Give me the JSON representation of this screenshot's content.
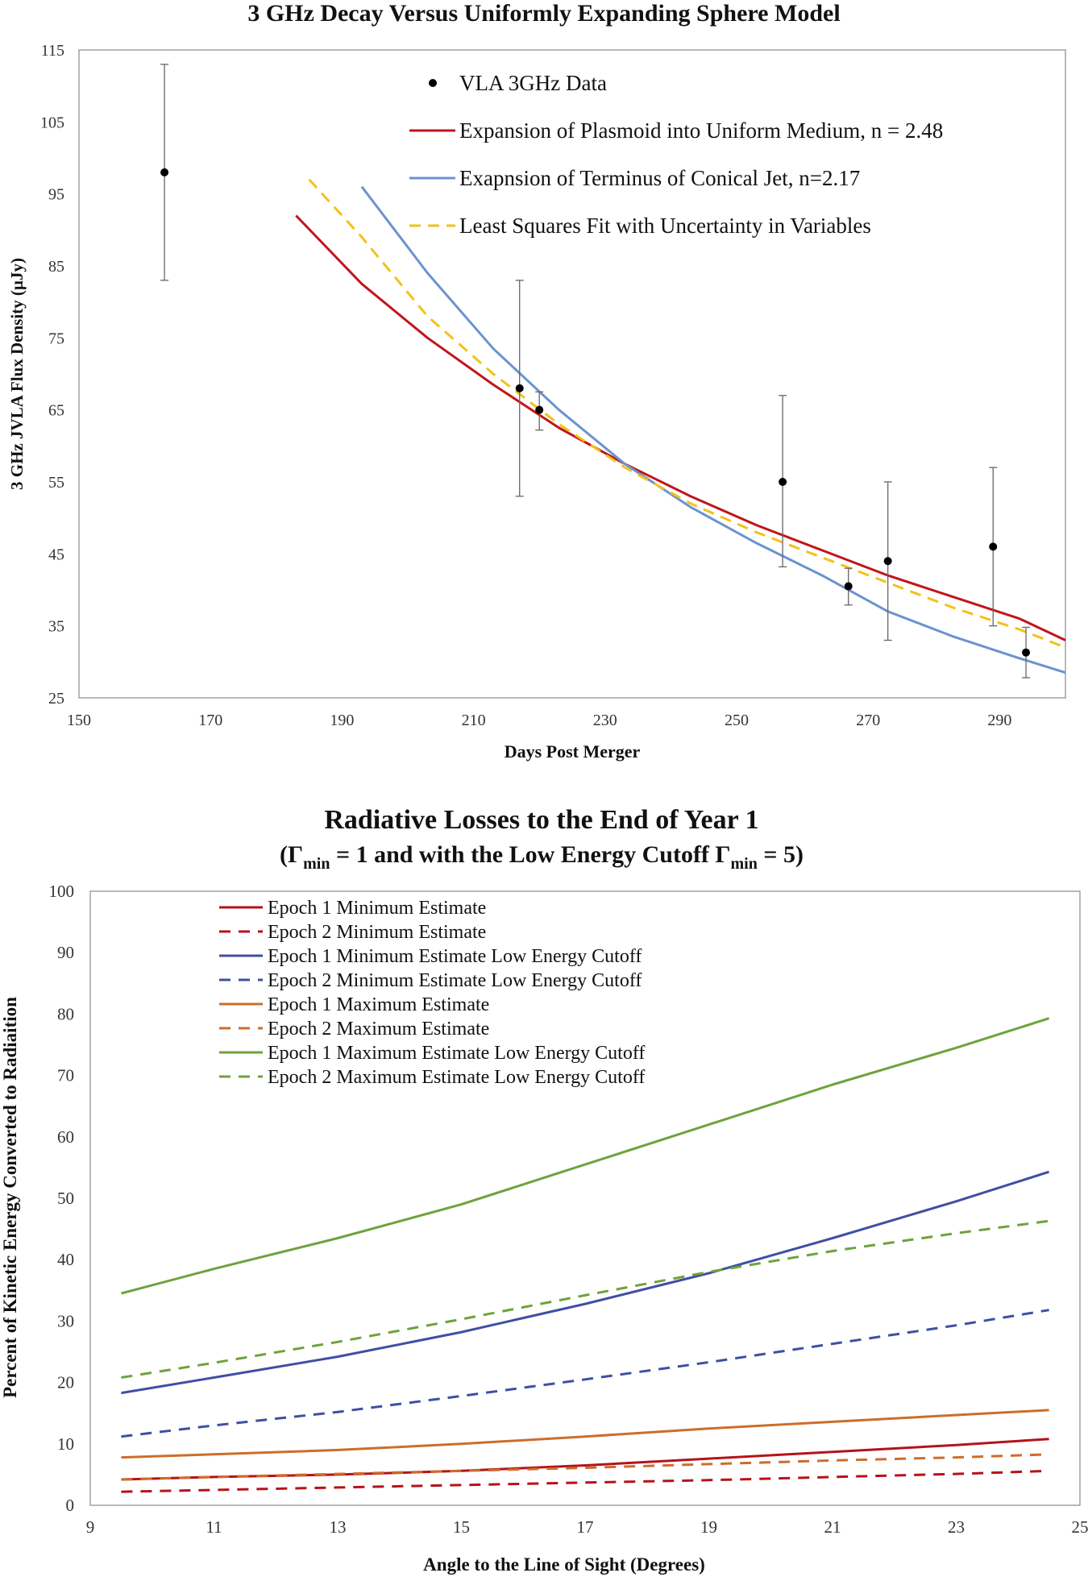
{
  "chart_data": [
    {
      "type": "scatter",
      "title": "3 GHz Decay Versus Uniformly Expanding Sphere Model",
      "xlabel": "Days Post Merger",
      "ylabel": "3 GHz JVLA Flux Density (µJy)",
      "xlim": [
        150,
        300
      ],
      "ylim": [
        25,
        115
      ],
      "xticks": [
        150,
        170,
        190,
        210,
        230,
        250,
        270,
        290
      ],
      "yticks": [
        25,
        35,
        45,
        55,
        65,
        75,
        85,
        95,
        105,
        115
      ],
      "grid": false,
      "legend_position": "top-center",
      "points": {
        "name": "VLA 3GHz Data",
        "color": "#000000",
        "x": [
          163,
          217,
          220,
          257,
          267,
          273,
          289,
          294
        ],
        "y": [
          98,
          68,
          65,
          55,
          40.5,
          44,
          46,
          31.3
        ],
        "err_low": [
          83,
          53,
          62.2,
          43.2,
          37.9,
          33,
          35,
          27.8
        ],
        "err_high": [
          113,
          83,
          67.5,
          67,
          43,
          55,
          57,
          34.8
        ]
      },
      "series": [
        {
          "name": "Expansion of Plasmoid into Uniform Medium, n  = 2.48",
          "color": "#c0161b",
          "dash": "solid",
          "x": [
            183,
            193,
            203,
            213,
            223,
            233,
            243,
            253,
            263,
            273,
            283,
            293,
            300
          ],
          "y": [
            92,
            82.5,
            75,
            68.5,
            62.5,
            57.5,
            53,
            49,
            45.5,
            42,
            39,
            36,
            33
          ]
        },
        {
          "name": "Exapnsion of Terminus of Conical Jet, n=2.17",
          "color": "#6b93d0",
          "dash": "solid",
          "x": [
            193,
            203,
            213,
            223,
            233,
            243,
            253,
            263,
            273,
            283,
            293,
            300
          ],
          "y": [
            96,
            84,
            73.5,
            65,
            57.5,
            51.5,
            46.5,
            42,
            37,
            33.5,
            30.5,
            28.5
          ]
        },
        {
          "name": "Least Squares Fit with Uncertainty in Variables",
          "color": "#f2c21a",
          "dash": "dashed",
          "x": [
            185,
            193,
            203,
            213,
            223,
            233,
            243,
            253,
            263,
            273,
            283,
            293,
            300
          ],
          "y": [
            97,
            89,
            78,
            70,
            63,
            57,
            52,
            48,
            44.5,
            41,
            37.5,
            34.5,
            32
          ]
        }
      ]
    },
    {
      "type": "line",
      "title": "Radiative Losses to the End of Year 1",
      "subtitle_parts": [
        "(Γ",
        "min",
        " = 1 and with the Low Energy Cutoff Γ",
        "min",
        " = 5)"
      ],
      "xlabel": "Angle to the Line of Sight (Degrees)",
      "ylabel": "Percent of Kinetic Energy Converted to Radiaition",
      "xlim": [
        9,
        25
      ],
      "ylim": [
        0,
        100
      ],
      "xticks": [
        9,
        11,
        13,
        15,
        17,
        19,
        21,
        23,
        25
      ],
      "yticks": [
        0,
        10,
        20,
        30,
        40,
        50,
        60,
        70,
        80,
        90,
        100
      ],
      "grid": false,
      "legend_position": "top-left",
      "x": [
        9.5,
        11,
        13,
        15,
        17,
        19,
        21,
        23,
        24.5
      ],
      "series": [
        {
          "name": "Epoch 1 Minimum Estimate",
          "color": "#b5121b",
          "dash": "solid",
          "values": [
            4.2,
            4.6,
            5.0,
            5.6,
            6.5,
            7.6,
            8.7,
            9.8,
            10.8
          ]
        },
        {
          "name": "Epoch 2 Minimum  Estimate",
          "color": "#b5121b",
          "dash": "dashed",
          "values": [
            2.2,
            2.5,
            2.9,
            3.3,
            3.7,
            4.1,
            4.6,
            5.1,
            5.6
          ]
        },
        {
          "name": "Epoch 1 Minimum Estimate Low Energy Cutoff",
          "color": "#3f4fa3",
          "dash": "solid",
          "values": [
            18.3,
            20.8,
            24.2,
            28.2,
            32.8,
            37.8,
            43.5,
            49.5,
            54.3
          ]
        },
        {
          "name": "Epoch 2 Minimum Estimate Low Energy Cutoff",
          "color": "#3f4fa3",
          "dash": "dashed",
          "values": [
            11.2,
            13.0,
            15.2,
            17.8,
            20.5,
            23.3,
            26.3,
            29.3,
            31.8
          ]
        },
        {
          "name": "Epoch 1 Maximum Estimate",
          "color": "#cd6d2b",
          "dash": "solid",
          "values": [
            7.8,
            8.3,
            9.0,
            10.0,
            11.2,
            12.5,
            13.6,
            14.7,
            15.5
          ]
        },
        {
          "name": "Epoch 2 Maximum Estimate",
          "color": "#cd6d2b",
          "dash": "dashed",
          "values": [
            4.2,
            4.6,
            5.1,
            5.6,
            6.1,
            6.7,
            7.3,
            7.8,
            8.3
          ]
        },
        {
          "name": "Epoch 1 Maximum Estimate Low Energy Cutoff",
          "color": "#6fa23b",
          "dash": "solid",
          "values": [
            34.5,
            38.5,
            43.5,
            49.0,
            55.5,
            62.0,
            68.5,
            74.5,
            79.3
          ]
        },
        {
          "name": "Epoch 2 Maximum Estimate Low Energy Cutoff",
          "color": "#6fa23b",
          "dash": "dashed",
          "values": [
            20.8,
            23.2,
            26.6,
            30.3,
            34.2,
            38.0,
            41.4,
            44.3,
            46.3
          ]
        }
      ]
    }
  ]
}
